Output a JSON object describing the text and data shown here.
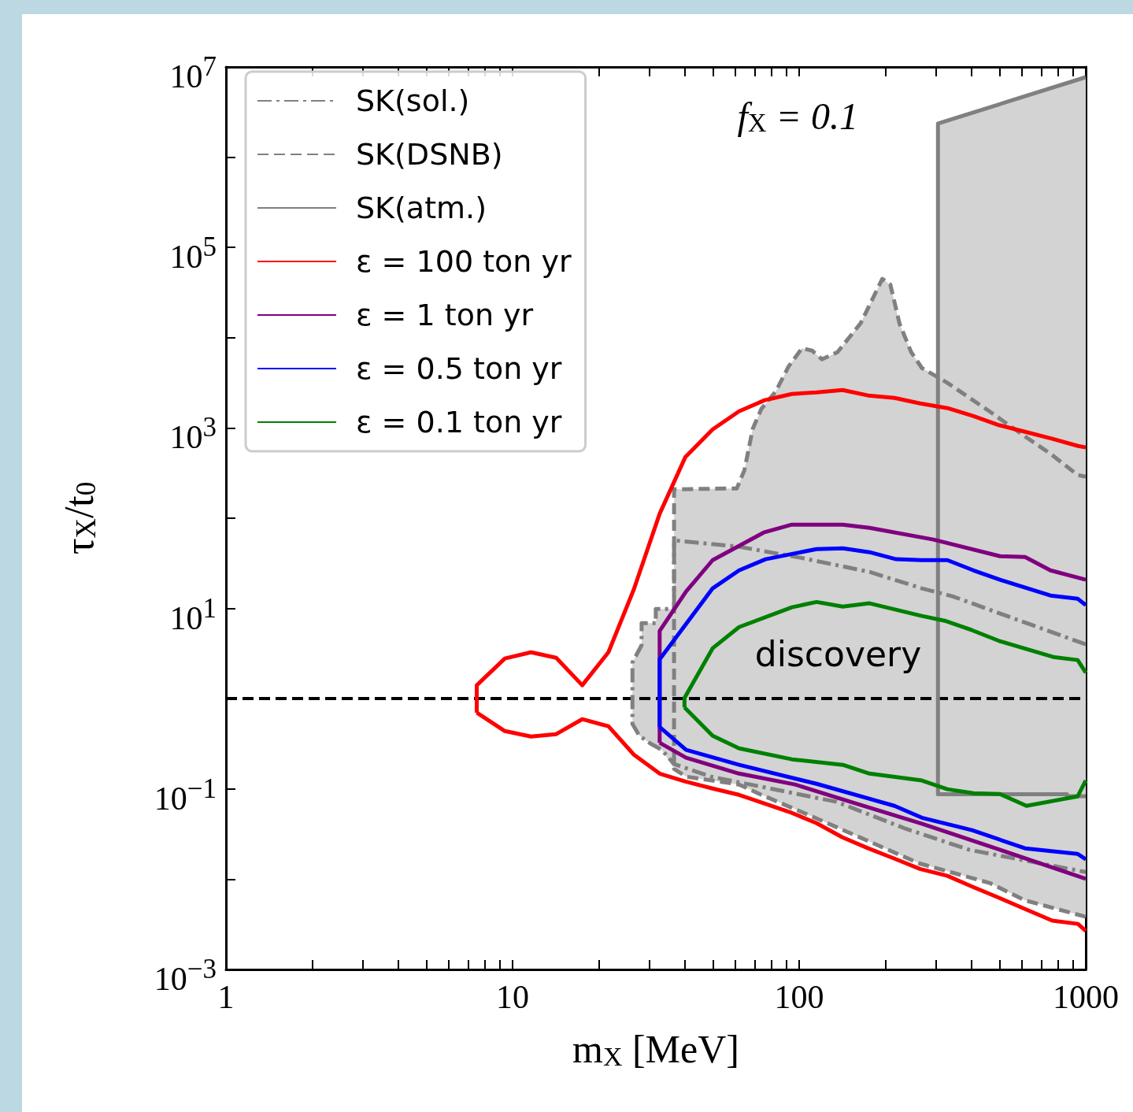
{
  "chart_data": {
    "type": "line",
    "xlabel": "m$_{X}$ [MeV]",
    "ylabel": "τ$_{X}$/t$_{0}$",
    "log": "xy",
    "grid": false,
    "legend": "top left",
    "marker": "none",
    "xlim": [
      1,
      1000
    ],
    "ylim": [
      0.001,
      10000000
    ],
    "xticks": [
      1,
      {
        "value": 2,
        "label": null
      },
      {
        "value": 3,
        "label": null
      },
      {
        "value": 4,
        "label": null
      },
      {
        "value": 5,
        "label": null
      },
      {
        "value": 6,
        "label": null
      },
      {
        "value": 7,
        "label": null
      },
      {
        "value": 8,
        "label": null
      },
      {
        "value": 9,
        "label": null
      },
      10,
      {
        "value": 20,
        "label": null
      },
      {
        "value": 30,
        "label": null
      },
      {
        "value": 40,
        "label": null
      },
      {
        "value": 50,
        "label": null
      },
      {
        "value": 60,
        "label": null
      },
      {
        "value": 70,
        "label": null
      },
      {
        "value": 80,
        "label": null
      },
      {
        "value": 90,
        "label": null
      },
      100,
      {
        "value": 200,
        "label": null
      },
      {
        "value": 300,
        "label": null
      },
      {
        "value": 400,
        "label": null
      },
      {
        "value": 500,
        "label": null
      },
      {
        "value": 600,
        "label": null
      },
      {
        "value": 700,
        "label": null
      },
      {
        "value": 800,
        "label": null
      },
      {
        "value": 900,
        "label": null
      },
      1000
    ],
    "yticks": [
      {
        "value": 0.001,
        "label": "10$^{−3}$"
      },
      {
        "value": 0.01,
        "label": null
      },
      {
        "value": 0.1,
        "label": "10$^{−1}$"
      },
      {
        "value": 1,
        "label": null
      },
      {
        "value": 10,
        "label": "10$^{1}$"
      },
      {
        "value": 100,
        "label": null
      },
      {
        "value": 1000,
        "label": "10$^{3}$"
      },
      {
        "value": 10000,
        "label": null
      },
      {
        "value": 100000,
        "label": "10$^{5}$"
      },
      {
        "value": 1000000,
        "label": null
      },
      {
        "value": 10000000,
        "label": "10$^{7}$"
      }
    ],
    "ref_lines": [
      {
        "axis": "y",
        "value": 1,
        "color": "#000000",
        "line_style": "dashed"
      }
    ],
    "annotations": [
      "f$_{X}$ = 0.1",
      "discovery"
    ],
    "series": [
      {
        "type": "area",
        "color": "#d3d3d3",
        "x": [
          26.2,
          26.2,
          28.2,
          28.2,
          31.6,
          31.6,
          36.6,
          36.6,
          60.6,
          64.4,
          68.9,
          73.8,
          82.8,
          91.9,
          102.3,
          111,
          120,
          136,
          164,
          195,
          208,
          224,
          246,
          268,
          305,
          305,
          1000,
          1000,
          614,
          461,
          262,
          115,
          73.8,
          61.7,
          40.3,
          36.6,
          33.2,
          30.3,
          27.7,
          26.2
        ],
        "values": [
          0.526,
          2.52,
          3.92,
          6.88,
          6.88,
          9.89,
          9.89,
          209,
          214,
          340,
          984,
          1626,
          2530,
          4810,
          7640,
          7190,
          5770,
          6910,
          14500,
          44800,
          38900,
          14300,
          6910,
          4620,
          3700,
          2360000,
          7700000,
          0.00383,
          0.00583,
          0.0091,
          0.015,
          0.0472,
          0.0862,
          0.112,
          0.137,
          0.167,
          0.271,
          0.318,
          0.389,
          0.526
        ]
      },
      {
        "name": "SK(sol.)",
        "color": "#808080",
        "line_style": "dashdot",
        "x": [
          1000,
          512,
          344,
          268,
          176,
          101,
          61.7,
          36.6,
          36.6,
          31.6,
          31.6,
          28.2,
          28.2,
          26.2,
          26.2,
          27.7,
          30.3,
          33.2,
          36.6,
          49.2,
          135,
          235,
          394,
          1000
        ],
        "values": [
          4.0,
          8.59,
          13.6,
          16.7,
          25.4,
          36.5,
          48.3,
          56.8,
          9.89,
          9.89,
          6.88,
          6.88,
          3.92,
          2.52,
          0.526,
          0.389,
          0.318,
          0.271,
          0.189,
          0.137,
          0.072,
          0.0363,
          0.0211,
          0.012
        ]
      },
      {
        "name": "SK(DSNB)",
        "color": "#808080",
        "line_style": "dashed",
        "x": [
          1000,
          614,
          461,
          262,
          115,
          73.8,
          61.7,
          40.3,
          36.6,
          36.6,
          60.6,
          64.4,
          68.9,
          73.8,
          82.8,
          91.9,
          102.3,
          111,
          120,
          136,
          164,
          195,
          208,
          224,
          246,
          268,
          329,
          461,
          614,
          753,
          937,
          1000
        ],
        "values": [
          0.00383,
          0.00583,
          0.0091,
          0.015,
          0.0472,
          0.0862,
          0.112,
          0.137,
          0.167,
          209,
          214,
          340,
          984,
          1626,
          2530,
          4810,
          7640,
          7190,
          5770,
          6910,
          14500,
          44800,
          38900,
          14300,
          6910,
          4620,
          3160,
          1530,
          805,
          518,
          301,
          289
        ]
      },
      {
        "name": "SK(atm.)",
        "color": "#808080",
        "line_style": "solid",
        "x": [
          1000,
          305,
          305,
          860,
          860,
          1000
        ],
        "values": [
          7700000,
          2360000,
          0.0875,
          0.0875,
          0.083,
          0.083
        ]
      },
      {
        "name": "ε = 100 ton yr",
        "color": "#ff0000",
        "line_style": "solid",
        "x": [
          7.5,
          7.5,
          9.4,
          11.6,
          14.2,
          17.5,
          21.6,
          26.5,
          32.6,
          40.1,
          49.9,
          61.7,
          75.8,
          94.3,
          115,
          141.6,
          174,
          215,
          264,
          329,
          404,
          500,
          614,
          764,
          939,
          1000,
          null,
          1000,
          939,
          764,
          614,
          500,
          404,
          329,
          264,
          215,
          174,
          141.6,
          115,
          94.3,
          75.8,
          61.7,
          49.9,
          40.1,
          32.6,
          26.5,
          21.6,
          17.5,
          14.2,
          11.6,
          9.4,
          7.5
        ],
        "values": [
          0.7,
          1.41,
          2.79,
          3.27,
          2.84,
          1.41,
          3.27,
          16.3,
          112,
          478,
          964,
          1531,
          2030,
          2380,
          2480,
          2630,
          2290,
          2150,
          1870,
          1660,
          1360,
          1070,
          908,
          758,
          632,
          608,
          null,
          0.00267,
          0.0032,
          0.00347,
          0.00468,
          0.0062,
          0.0082,
          0.0109,
          0.013,
          0.0169,
          0.022,
          0.0291,
          0.0418,
          0.0543,
          0.069,
          0.086,
          0.101,
          0.121,
          0.148,
          0.24,
          0.495,
          0.593,
          0.405,
          0.381,
          0.438,
          0.7
        ]
      },
      {
        "name": "ε = 1 ton yr",
        "color": "#800080",
        "line_style": "solid",
        "x": [
          32.6,
          32.6,
          40.3,
          49.9,
          75.2,
          94.3,
          142,
          176,
          294,
          502,
          614,
          753,
          1000,
          null,
          1000,
          503,
          269,
          151,
          96.7,
          61.7,
          40.3,
          32.6
        ],
        "values": [
          0.325,
          5.63,
          15.4,
          34.3,
          69.4,
          84.8,
          84.8,
          78.3,
          58,
          37.9,
          37.2,
          26.4,
          20.8,
          null,
          0.0101,
          0.0211,
          0.041,
          0.072,
          0.112,
          0.148,
          0.222,
          0.325
        ]
      },
      {
        "name": "ε = 0.5 ton yr",
        "color": "#0000ff",
        "line_style": "solid",
        "x": [
          32.6,
          32.6,
          49.9,
          61.7,
          76.3,
          115,
          142,
          176,
          218,
          268,
          329,
          406,
          502,
          753,
          937,
          1000,
          null,
          1000,
          937,
          614,
          401,
          268,
          215,
          115,
          61.7,
          40.3,
          32.6
        ],
        "values": [
          0.485,
          2.73,
          16.7,
          26.4,
          35.1,
          45.5,
          46.4,
          42,
          35.1,
          34.3,
          34.3,
          26.4,
          20.8,
          13.9,
          12.8,
          10.9,
          null,
          0.0166,
          0.0191,
          0.022,
          0.0349,
          0.048,
          0.065,
          0.114,
          0.185,
          0.271,
          0.485
        ]
      },
      {
        "name": "ε = 0.1 ton yr",
        "color": "#008000",
        "line_style": "solid",
        "x": [
          39.8,
          39.8,
          49.9,
          61.7,
          94.3,
          115,
          142,
          176,
          268,
          322,
          401,
          502,
          769,
          937,
          1000,
          null,
          1000,
          937,
          621,
          502,
          406,
          329,
          268,
          176,
          142,
          94.3,
          61.7,
          49.9,
          39.8
        ],
        "values": [
          0.8,
          1.02,
          3.62,
          6.22,
          10.3,
          11.8,
          10.5,
          11.4,
          8.25,
          7.31,
          5.74,
          4.33,
          2.9,
          2.68,
          1.94,
          null,
          0.124,
          0.0828,
          0.065,
          0.0879,
          0.0897,
          0.0993,
          0.124,
          0.148,
          0.185,
          0.213,
          0.282,
          0.389,
          0.8
        ]
      }
    ]
  }
}
